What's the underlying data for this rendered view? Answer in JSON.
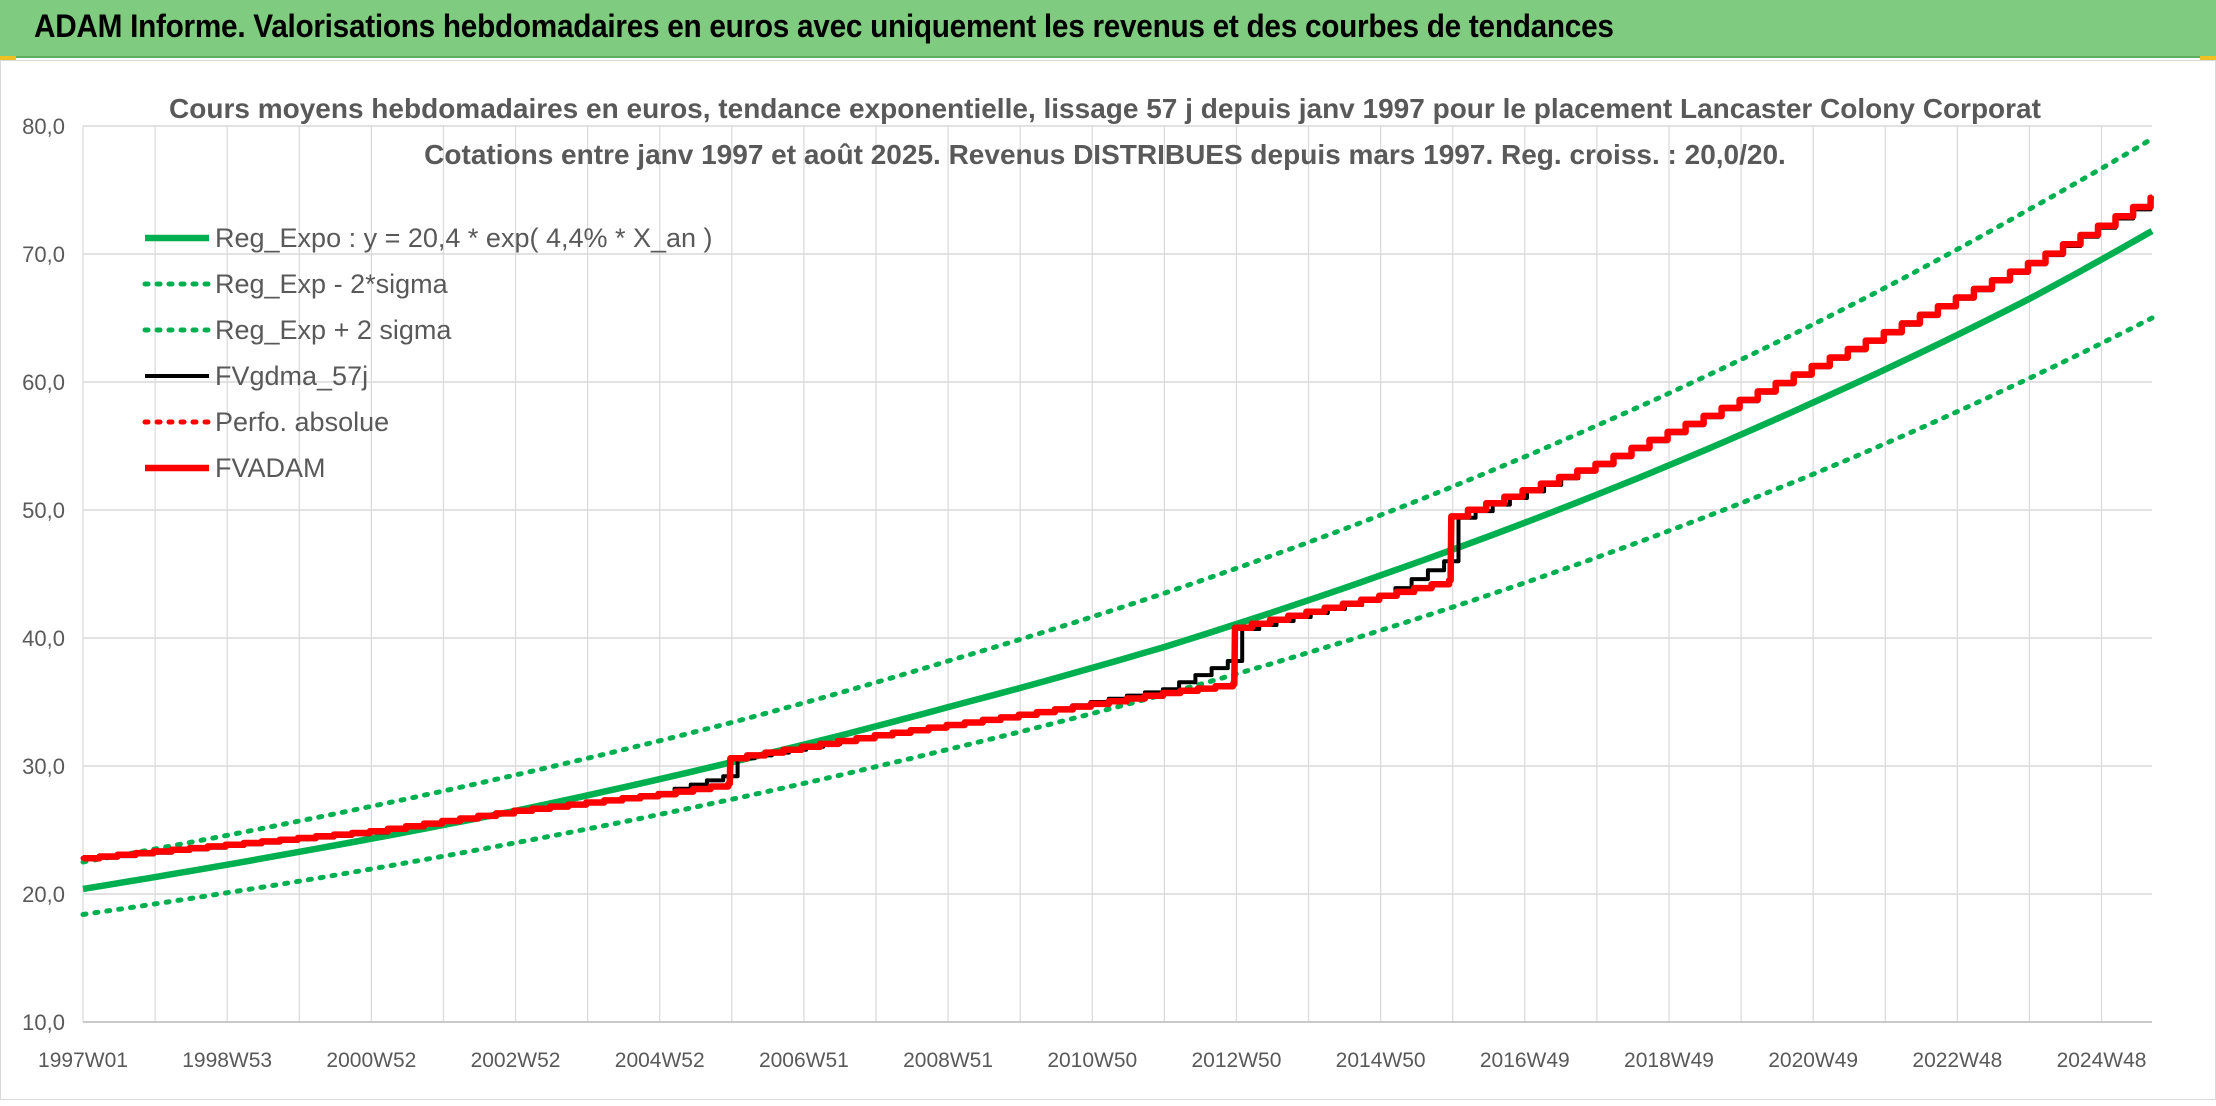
{
  "banner": {
    "title": "ADAM Informe. Valorisations hebdomadaires en euros avec uniquement les revenus et des courbes de tendances"
  },
  "colors": {
    "banner_bg": "#7fcb7f",
    "green": "#00b050",
    "red": "#ff0000",
    "black": "#000000",
    "grid": "#d9d9d9",
    "text": "#595959"
  },
  "chart_data": {
    "type": "line",
    "title_line1": "Cours moyens hebdomadaires en euros, tendance exponentielle, lissage 57 j depuis janv 1997 pour le placement Lancaster Colony Corporat",
    "title_line2": "Cotations entre janv 1997 et août 2025. Revenus DISTRIBUES depuis mars 1997. Reg. croiss. : 20,0/20.",
    "ylim": [
      10,
      80
    ],
    "yticks": [
      "10,0",
      "20,0",
      "30,0",
      "40,0",
      "50,0",
      "60,0",
      "70,0",
      "80,0"
    ],
    "ytick_values": [
      10,
      20,
      30,
      40,
      50,
      60,
      70,
      80
    ],
    "xlim": [
      1997.0,
      2025.7
    ],
    "xticks": [
      "1997W01",
      "1998W53",
      "2000W52",
      "2002W52",
      "2004W52",
      "2006W51",
      "2008W51",
      "2010W50",
      "2012W50",
      "2014W50",
      "2016W49",
      "2018W49",
      "2020W49",
      "2022W48",
      "2024W48"
    ],
    "xtick_values": [
      1997.0,
      1999.0,
      2001.0,
      2003.0,
      2005.0,
      2007.0,
      2009.0,
      2011.0,
      2013.0,
      2015.0,
      2017.0,
      2019.0,
      2021.0,
      2023.0,
      2025.0
    ],
    "grid": true,
    "legend_position": "top-left",
    "series": [
      {
        "name": "Reg_Expo : y = 20,4 * exp( 4,4% *  X_an )",
        "style": "solid-thick",
        "color": "#00b050",
        "x": [
          1997.0,
          2000.0,
          2003.0,
          2006.0,
          2009.0,
          2012.0,
          2015.0,
          2018.0,
          2021.0,
          2024.0,
          2025.7
        ],
        "values": [
          20.4,
          23.3,
          26.5,
          30.3,
          34.6,
          39.3,
          44.9,
          51.2,
          58.4,
          66.5,
          71.8
        ]
      },
      {
        "name": "Reg_Exp - 2*sigma",
        "style": "dotted",
        "color": "#00b050",
        "x": [
          1997.0,
          2000.0,
          2003.0,
          2006.0,
          2009.0,
          2012.0,
          2015.0,
          2018.0,
          2021.0,
          2024.0,
          2025.7
        ],
        "values": [
          18.4,
          21.0,
          24.0,
          27.4,
          31.3,
          35.6,
          40.6,
          46.3,
          52.8,
          60.3,
          65.0
        ]
      },
      {
        "name": "Reg_Exp + 2 sigma",
        "style": "dotted",
        "color": "#00b050",
        "x": [
          1997.0,
          2000.0,
          2003.0,
          2006.0,
          2009.0,
          2012.0,
          2015.0,
          2018.0,
          2021.0,
          2024.0,
          2025.7
        ],
        "values": [
          22.5,
          25.7,
          29.3,
          33.4,
          38.2,
          43.5,
          49.6,
          56.6,
          64.5,
          73.5,
          79.0
        ]
      },
      {
        "name": "FVgdma_57j",
        "style": "solid",
        "color": "#000000",
        "x": [
          1997.0,
          2001.0,
          2003.0,
          2005.0,
          2005.9,
          2006.1,
          2008.0,
          2010.0,
          2012.0,
          2012.9,
          2013.1,
          2015.0,
          2015.9,
          2016.1,
          2018.0,
          2020.0,
          2022.0,
          2024.0,
          2025.7
        ],
        "values": [
          22.7,
          24.8,
          26.5,
          27.9,
          29.2,
          30.6,
          32.4,
          34.0,
          36.0,
          38.2,
          40.7,
          43.2,
          46.0,
          49.4,
          53.5,
          58.5,
          63.8,
          69.2,
          74.2
        ]
      },
      {
        "name": "Perfo. absolue",
        "style": "dotted",
        "color": "#ff0000",
        "x": [
          1997.0,
          2001.0,
          2003.0,
          2005.0,
          2005.97,
          2005.98,
          2008.0,
          2010.0,
          2012.0,
          2012.97,
          2012.98,
          2015.0,
          2015.97,
          2015.98,
          2018.0,
          2020.0,
          2022.0,
          2024.0,
          2025.7
        ],
        "values": [
          22.8,
          24.9,
          26.5,
          27.8,
          28.6,
          30.6,
          32.4,
          34.0,
          35.7,
          36.4,
          40.8,
          43.3,
          44.5,
          49.5,
          53.6,
          58.6,
          63.9,
          69.3,
          74.4
        ]
      },
      {
        "name": "FVADAM",
        "style": "solid-thick",
        "color": "#ff0000",
        "x": [
          1997.0,
          2001.0,
          2003.0,
          2005.0,
          2005.97,
          2005.98,
          2008.0,
          2010.0,
          2012.0,
          2012.97,
          2012.98,
          2015.0,
          2015.97,
          2015.98,
          2018.0,
          2020.0,
          2022.0,
          2024.0,
          2025.7
        ],
        "values": [
          22.8,
          24.9,
          26.5,
          27.8,
          28.6,
          30.6,
          32.4,
          34.0,
          35.7,
          36.4,
          40.8,
          43.3,
          44.5,
          49.5,
          53.6,
          58.6,
          63.9,
          69.3,
          74.4
        ]
      }
    ]
  }
}
